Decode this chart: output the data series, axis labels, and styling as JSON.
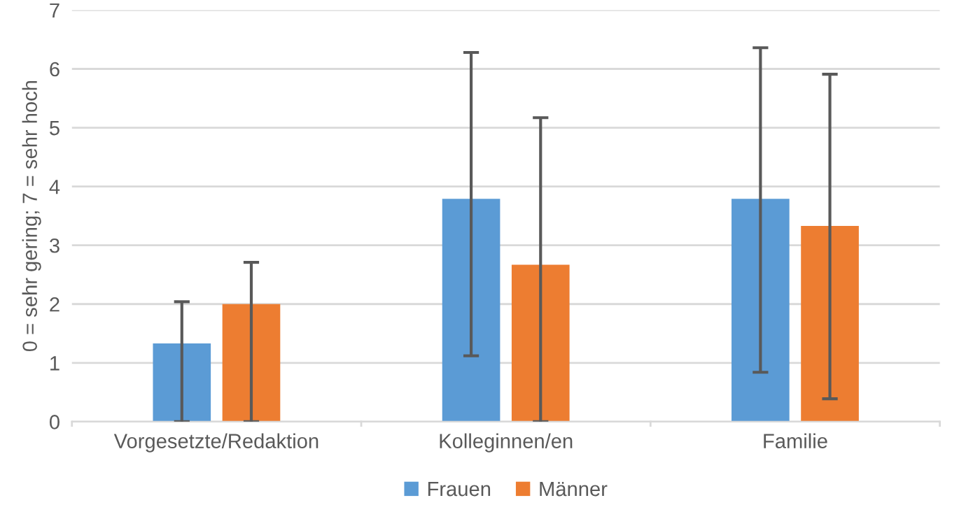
{
  "chart_data": {
    "type": "bar",
    "ylabel": "0 = sehr gering; 7 = sehr hoch",
    "categories": [
      "Vorgesetzte/Redaktion",
      "Kolleginnen/en",
      "Familie"
    ],
    "series": [
      {
        "name": "Frauen",
        "color": "#5b9bd5",
        "values": [
          1.33,
          3.79,
          3.79
        ],
        "errors": [
          [
            0,
            2.04
          ],
          [
            1.12,
            6.28
          ],
          [
            0.84,
            6.36
          ]
        ]
      },
      {
        "name": "Männer",
        "color": "#ed7d31",
        "values": [
          2.0,
          2.67,
          3.33
        ],
        "errors": [
          [
            0,
            2.71
          ],
          [
            0,
            5.17
          ],
          [
            0.39,
            5.91
          ]
        ]
      }
    ],
    "ylim": [
      0,
      7
    ],
    "yticks": [
      0,
      1,
      2,
      3,
      4,
      5,
      6,
      7
    ],
    "grid": "y",
    "legend": "bottom"
  }
}
